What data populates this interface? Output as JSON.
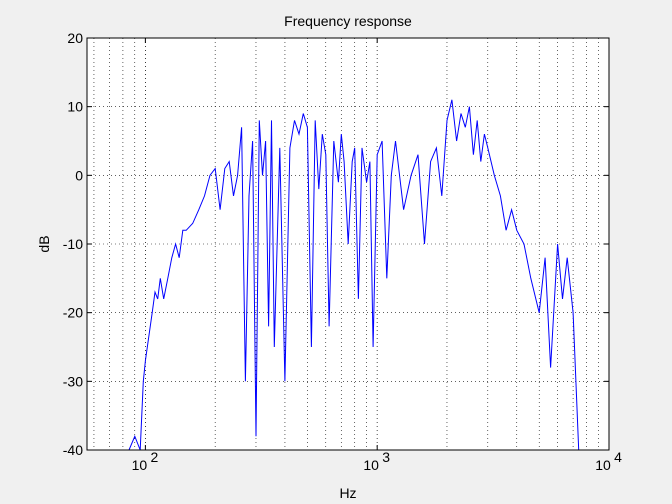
{
  "chart_data": {
    "type": "line",
    "title": "Frequency response",
    "xlabel": "Hz",
    "ylabel": "dB",
    "xscale": "log",
    "xlim": [
      56,
      10000
    ],
    "ylim": [
      -40,
      20
    ],
    "grid": "dotted",
    "x_ticks": [
      {
        "value": 100,
        "base": "10",
        "exp": "2"
      },
      {
        "value": 1000,
        "base": "10",
        "exp": "3"
      },
      {
        "value": 10000,
        "base": "10",
        "exp": "4"
      }
    ],
    "y_ticks": [
      {
        "value": 20,
        "label": "20"
      },
      {
        "value": 10,
        "label": "10"
      },
      {
        "value": 0,
        "label": "0"
      },
      {
        "value": -10,
        "label": "-10"
      },
      {
        "value": -20,
        "label": "-20"
      },
      {
        "value": -30,
        "label": "-30"
      },
      {
        "value": -40,
        "label": "-40"
      }
    ],
    "series": [
      {
        "color": "#0000ff",
        "x": [
          85,
          90,
          95,
          98,
          100,
          103,
          107,
          110,
          113,
          116,
          120,
          125,
          130,
          135,
          140,
          145,
          150,
          160,
          170,
          180,
          190,
          200,
          210,
          220,
          230,
          240,
          250,
          260,
          270,
          280,
          290,
          300,
          310,
          320,
          330,
          340,
          350,
          360,
          380,
          400,
          420,
          440,
          460,
          480,
          500,
          520,
          540,
          560,
          580,
          600,
          620,
          650,
          680,
          700,
          720,
          750,
          780,
          800,
          830,
          860,
          900,
          930,
          960,
          1000,
          1050,
          1100,
          1150,
          1200,
          1300,
          1400,
          1500,
          1600,
          1700,
          1800,
          1900,
          2000,
          2100,
          2200,
          2300,
          2400,
          2500,
          2600,
          2700,
          2800,
          2900,
          3000,
          3200,
          3400,
          3600,
          3800,
          4000,
          4300,
          4600,
          5000,
          5300,
          5600,
          6000,
          6300,
          6600,
          7000,
          7200,
          7400
        ],
        "y": [
          -40,
          -38,
          -40,
          -30,
          -27,
          -24,
          -20,
          -17,
          -18,
          -15,
          -18,
          -15,
          -12,
          -10,
          -12,
          -8,
          -8,
          -7,
          -5,
          -3,
          0,
          1,
          -5,
          1,
          2,
          -3,
          0,
          7,
          -30,
          -3,
          5,
          -38,
          8,
          0,
          5,
          -22,
          8,
          -25,
          4,
          -30,
          4,
          8,
          6,
          9,
          7,
          -25,
          8,
          -2,
          6,
          3,
          -22,
          5,
          -1,
          6,
          2,
          -10,
          2,
          4,
          -18,
          4,
          -1,
          2,
          -25,
          3,
          5,
          -15,
          0,
          5,
          -5,
          0,
          3,
          -10,
          2,
          4,
          -3,
          8,
          11,
          5,
          9,
          7,
          10,
          3,
          8,
          2,
          6,
          4,
          0,
          -3,
          -8,
          -5,
          -8,
          -10,
          -15,
          -20,
          -12,
          -28,
          -10,
          -18,
          -12,
          -20,
          -30,
          -40
        ]
      }
    ]
  }
}
